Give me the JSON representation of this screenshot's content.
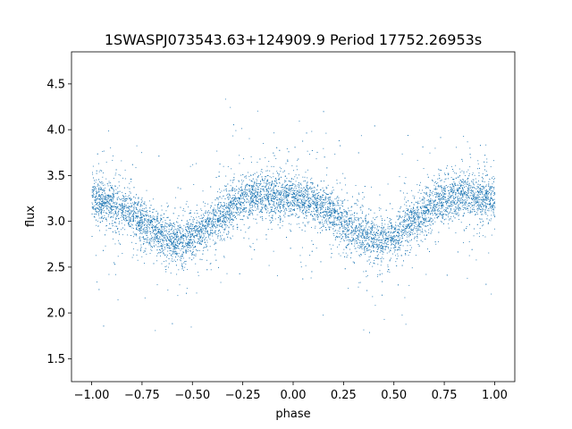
{
  "chart_data": {
    "type": "scatter",
    "title": "1SWASPJ073543.63+124909.9 Period 17752.26953s",
    "xlabel": "phase",
    "ylabel": "flux",
    "xlim": [
      -1.1,
      1.1
    ],
    "ylim": [
      1.25,
      4.85
    ],
    "x_ticks": [
      -1.0,
      -0.75,
      -0.5,
      -0.25,
      0.0,
      0.25,
      0.5,
      0.75,
      1.0
    ],
    "x_tick_labels": [
      "−1.00",
      "−0.75",
      "−0.50",
      "−0.25",
      "0.00",
      "0.25",
      "0.50",
      "0.75",
      "1.00"
    ],
    "y_ticks": [
      1.5,
      2.0,
      2.5,
      3.0,
      3.5,
      4.0,
      4.5
    ],
    "y_tick_labels": [
      "1.5",
      "2.0",
      "2.5",
      "3.0",
      "3.5",
      "4.0",
      "4.5"
    ],
    "grid": false,
    "marker_color": "#1f77b4",
    "phase_range": [
      -1.0,
      1.0
    ],
    "series": [
      {
        "x": [
          -1.0,
          -0.9,
          -0.8,
          -0.7,
          -0.6,
          -0.55,
          -0.5,
          -0.4,
          -0.3,
          -0.2,
          -0.15,
          -0.1,
          0.0,
          0.1,
          0.2,
          0.3,
          0.4,
          0.45,
          0.5,
          0.6,
          0.7,
          0.8,
          0.85,
          0.9,
          1.0
        ],
        "y": [
          3.25,
          3.2,
          3.08,
          2.92,
          2.8,
          2.78,
          2.82,
          3.0,
          3.18,
          3.28,
          3.3,
          3.28,
          3.25,
          3.2,
          3.08,
          2.92,
          2.8,
          2.78,
          2.82,
          3.0,
          3.18,
          3.28,
          3.3,
          3.28,
          3.25
        ]
      }
    ]
  }
}
